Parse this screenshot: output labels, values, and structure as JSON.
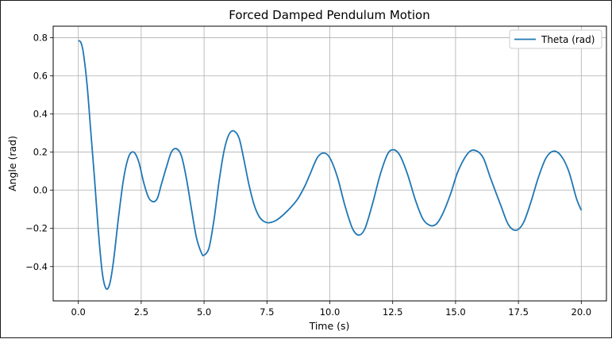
{
  "chart_data": {
    "type": "line",
    "title": "Forced Damped Pendulum Motion",
    "xlabel": "Time (s)",
    "ylabel": "Angle (rad)",
    "xlim": [
      -1.0,
      21.0
    ],
    "ylim": [
      -0.58,
      0.86
    ],
    "xticks": [
      0.0,
      2.5,
      5.0,
      7.5,
      10.0,
      12.5,
      15.0,
      17.5,
      20.0
    ],
    "xtick_labels": [
      "0.0",
      "2.5",
      "5.0",
      "7.5",
      "10.0",
      "12.5",
      "15.0",
      "17.5",
      "20.0"
    ],
    "yticks": [
      -0.4,
      -0.2,
      0.0,
      0.2,
      0.4,
      0.6,
      0.8
    ],
    "ytick_labels": [
      "−0.4",
      "−0.2",
      "0.0",
      "0.2",
      "0.4",
      "0.6",
      "0.8"
    ],
    "grid": true,
    "legend_position": "top-right",
    "series": [
      {
        "name": "Theta (rad)",
        "color": "#1f77b4",
        "points": [
          [
            0.0,
            0.785
          ],
          [
            0.1,
            0.775
          ],
          [
            0.2,
            0.72
          ],
          [
            0.35,
            0.55
          ],
          [
            0.5,
            0.3
          ],
          [
            0.65,
            0.05
          ],
          [
            0.8,
            -0.22
          ],
          [
            0.95,
            -0.43
          ],
          [
            1.1,
            -0.515
          ],
          [
            1.25,
            -0.49
          ],
          [
            1.4,
            -0.37
          ],
          [
            1.6,
            -0.14
          ],
          [
            1.8,
            0.06
          ],
          [
            2.0,
            0.175
          ],
          [
            2.2,
            0.2
          ],
          [
            2.4,
            0.15
          ],
          [
            2.6,
            0.04
          ],
          [
            2.8,
            -0.04
          ],
          [
            3.0,
            -0.06
          ],
          [
            3.15,
            -0.04
          ],
          [
            3.3,
            0.03
          ],
          [
            3.5,
            0.12
          ],
          [
            3.7,
            0.2
          ],
          [
            3.9,
            0.218
          ],
          [
            4.1,
            0.18
          ],
          [
            4.3,
            0.06
          ],
          [
            4.5,
            -0.1
          ],
          [
            4.7,
            -0.25
          ],
          [
            4.9,
            -0.33
          ],
          [
            5.0,
            -0.34
          ],
          [
            5.2,
            -0.3
          ],
          [
            5.4,
            -0.15
          ],
          [
            5.6,
            0.05
          ],
          [
            5.8,
            0.21
          ],
          [
            6.0,
            0.295
          ],
          [
            6.2,
            0.31
          ],
          [
            6.4,
            0.27
          ],
          [
            6.6,
            0.15
          ],
          [
            6.8,
            0.02
          ],
          [
            7.0,
            -0.08
          ],
          [
            7.2,
            -0.14
          ],
          [
            7.4,
            -0.165
          ],
          [
            7.6,
            -0.17
          ],
          [
            7.9,
            -0.155
          ],
          [
            8.3,
            -0.11
          ],
          [
            8.7,
            -0.05
          ],
          [
            9.0,
            0.02
          ],
          [
            9.2,
            0.08
          ],
          [
            9.5,
            0.17
          ],
          [
            9.75,
            0.195
          ],
          [
            10.0,
            0.17
          ],
          [
            10.3,
            0.07
          ],
          [
            10.6,
            -0.08
          ],
          [
            10.9,
            -0.2
          ],
          [
            11.15,
            -0.235
          ],
          [
            11.4,
            -0.2
          ],
          [
            11.7,
            -0.07
          ],
          [
            12.0,
            0.08
          ],
          [
            12.3,
            0.19
          ],
          [
            12.55,
            0.212
          ],
          [
            12.8,
            0.18
          ],
          [
            13.1,
            0.08
          ],
          [
            13.4,
            -0.05
          ],
          [
            13.7,
            -0.15
          ],
          [
            14.0,
            -0.185
          ],
          [
            14.25,
            -0.175
          ],
          [
            14.5,
            -0.12
          ],
          [
            14.8,
            -0.02
          ],
          [
            15.1,
            0.1
          ],
          [
            15.5,
            0.195
          ],
          [
            15.8,
            0.208
          ],
          [
            16.1,
            0.17
          ],
          [
            16.4,
            0.06
          ],
          [
            16.8,
            -0.08
          ],
          [
            17.1,
            -0.18
          ],
          [
            17.4,
            -0.21
          ],
          [
            17.7,
            -0.17
          ],
          [
            18.0,
            -0.06
          ],
          [
            18.3,
            0.07
          ],
          [
            18.6,
            0.17
          ],
          [
            18.9,
            0.205
          ],
          [
            19.2,
            0.18
          ],
          [
            19.5,
            0.1
          ],
          [
            19.8,
            -0.04
          ],
          [
            20.0,
            -0.105
          ]
        ]
      }
    ]
  }
}
